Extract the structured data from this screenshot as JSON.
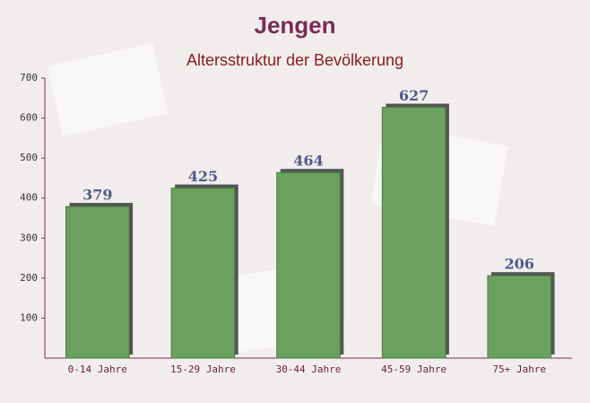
{
  "chart_data": {
    "type": "bar",
    "title": "Jengen",
    "subtitle": "Altersstruktur der Bevölkerung",
    "categories": [
      "0-14 Jahre",
      "15-29 Jahre",
      "30-44 Jahre",
      "45-59 Jahre",
      "75+ Jahre"
    ],
    "values": [
      379,
      425,
      464,
      627,
      206
    ],
    "color": "#6aa15e",
    "ylim": [
      0,
      700
    ],
    "yticks": [
      100,
      200,
      300,
      400,
      500,
      600,
      700
    ],
    "grid": false
  }
}
